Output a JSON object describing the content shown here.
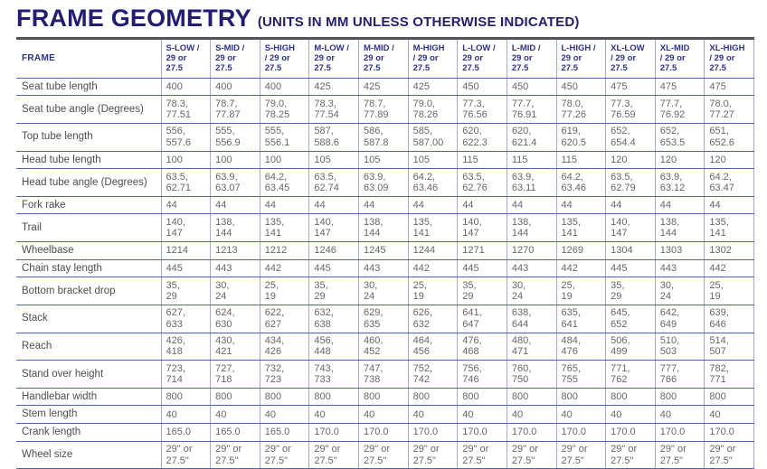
{
  "header": {
    "title": "FRAME GEOMETRY",
    "subtitle": "(UNITS IN MM UNLESS OTHERWISE INDICATED)"
  },
  "colors": {
    "title_navy": "#221c77",
    "header_blue": "#2d3190",
    "row_line_blue": "#5560aa",
    "column_line_lavender": "#a2aad8",
    "label_gray": "#4d4d4d",
    "value_gray": "#666666"
  },
  "chart_data": {
    "type": "table",
    "title": "FRAME GEOMETRY",
    "units_note": "(UNITS IN MM UNLESS OTHERWISE INDICATED)",
    "corner_label": "FRAME",
    "columns": [
      "S-LOW /\n29 or\n27.5",
      "S-MID /\n29 or\n27.5",
      "S-HIGH\n/ 29 or\n27.5",
      "M-LOW /\n29 or\n27.5",
      "M-MID /\n29 or\n27.5",
      "M-HIGH\n/ 29 or\n27.5",
      "L-LOW /\n29 or\n27.5",
      "L-MID /\n29 or\n27.5",
      "L-HIGH /\n29 or\n27.5",
      "XL-LOW\n/ 29 or\n27.5",
      "XL-MID\n/ 29 or\n27.5",
      "XL-HIGH\n/ 29 or\n27.5"
    ],
    "rows": [
      {
        "label": "Seat tube length",
        "values": [
          "400",
          "400",
          "400",
          "425",
          "425",
          "425",
          "450",
          "450",
          "450",
          "475",
          "475",
          "475"
        ]
      },
      {
        "label": "Seat tube angle (Degrees)",
        "values": [
          "78.3,\n77.51",
          "78.7,\n77.87",
          "79.0,\n78.25",
          "78.3,\n77.54",
          "78.7,\n77.89",
          "79.0,\n78.26",
          "77.3,\n76.56",
          "77.7,\n76.91",
          "78.0,\n77.26",
          "77.3,\n76.59",
          "77.7,\n76.92",
          "78.0,\n77.27"
        ]
      },
      {
        "label": "Top tube length",
        "values": [
          "556,\n557.6",
          "555,\n556.9",
          "555,\n556.1",
          "587,\n588.6",
          "586,\n587.8",
          "585,\n587.00",
          "620,\n622.3",
          "620,\n621.4",
          "619,\n620.5",
          "652,\n654.4",
          "652,\n653.5",
          "651,\n652.6"
        ]
      },
      {
        "label": "Head tube length",
        "values": [
          "100",
          "100",
          "100",
          "105",
          "105",
          "105",
          "115",
          "115",
          "115",
          "120",
          "120",
          "120"
        ]
      },
      {
        "label": "Head tube angle (Degrees)",
        "values": [
          "63.5,\n62.71",
          "63.9,\n63.07",
          "64.2,\n63.45",
          "63.5,\n62.74",
          "63.9,\n63.09",
          "64.2,\n63.46",
          "63.5,\n62.76",
          "63.9,\n63.11",
          "64.2,\n63.46",
          "63.5,\n62.79",
          "63.9,\n63.12",
          "64.2,\n63.47"
        ]
      },
      {
        "label": "Fork rake",
        "values": [
          "44",
          "44",
          "44",
          "44",
          "44",
          "44",
          "44",
          "44",
          "44",
          "44",
          "44",
          "44"
        ]
      },
      {
        "label": "Trail",
        "values": [
          "140,\n147",
          "138,\n144",
          "135,\n141",
          "140,\n147",
          "138,\n144",
          "135,\n141",
          "140,\n147",
          "138,\n144",
          "135,\n141",
          "140,\n147",
          "138,\n144",
          "135,\n141"
        ]
      },
      {
        "label": "Wheelbase",
        "values": [
          "1214",
          "1213",
          "1212",
          "1246",
          "1245",
          "1244",
          "1271",
          "1270",
          "1269",
          "1304",
          "1303",
          "1302"
        ]
      },
      {
        "label": "Chain stay length",
        "values": [
          "445",
          "443",
          "442",
          "445",
          "443",
          "442",
          "445",
          "443",
          "442",
          "445",
          "443",
          "442"
        ]
      },
      {
        "label": "Bottom bracket drop",
        "values": [
          "35,\n29",
          "30,\n24",
          "25,\n19",
          "35,\n29",
          "30,\n24",
          "25,\n19",
          "35,\n29",
          "30,\n24",
          "25,\n19",
          "35,\n29",
          "30,\n24",
          "25,\n19"
        ]
      },
      {
        "label": "Stack",
        "values": [
          "627,\n633",
          "624,\n630",
          "622,\n627",
          "632,\n638",
          "629,\n635",
          "626,\n632",
          "641,\n647",
          "638,\n644",
          "635,\n641",
          "645,\n652",
          "642,\n649",
          "639,\n646"
        ]
      },
      {
        "label": "Reach",
        "values": [
          "426,\n418",
          "430,\n421",
          "434,\n426",
          "456,\n448",
          "460,\n452",
          "464,\n456",
          "476,\n468",
          "480,\n471",
          "484,\n476",
          "506,\n499",
          "510,\n503",
          "514,\n507"
        ]
      },
      {
        "label": "Stand over height",
        "values": [
          "723,\n714",
          "727,\n718",
          "732,\n723",
          "743,\n733",
          "747,\n738",
          "752,\n742",
          "756,\n746",
          "760,\n750",
          "765,\n755",
          "771,\n762",
          "777,\n766",
          "782,\n771"
        ]
      },
      {
        "label": "Handlebar width",
        "values": [
          "800",
          "800",
          "800",
          "800",
          "800",
          "800",
          "800",
          "800",
          "800",
          "800",
          "800",
          "800"
        ]
      },
      {
        "label": "Stem length",
        "values": [
          "40",
          "40",
          "40",
          "40",
          "40",
          "40",
          "40",
          "40",
          "40",
          "40",
          "40",
          "40"
        ]
      },
      {
        "label": "Crank length",
        "values": [
          "165.0",
          "165.0",
          "165.0",
          "170.0",
          "170.0",
          "170.0",
          "170.0",
          "170.0",
          "170.0",
          "170.0",
          "170.0",
          "170.0"
        ]
      },
      {
        "label": "Wheel size",
        "values": [
          "29\" or\n27.5\"",
          "29\" or\n27.5\"",
          "29\" or\n27.5\"",
          "29\" or\n27.5\"",
          "29\" or\n27.5\"",
          "29\" or\n27.5\"",
          "29\" or\n27.5\"",
          "29\" or\n27.5\"",
          "29\" or\n27.5\"",
          "29\" or\n27.5\"",
          "29\" or\n27.5\"",
          "29\" or\n27.5\""
        ]
      }
    ]
  }
}
